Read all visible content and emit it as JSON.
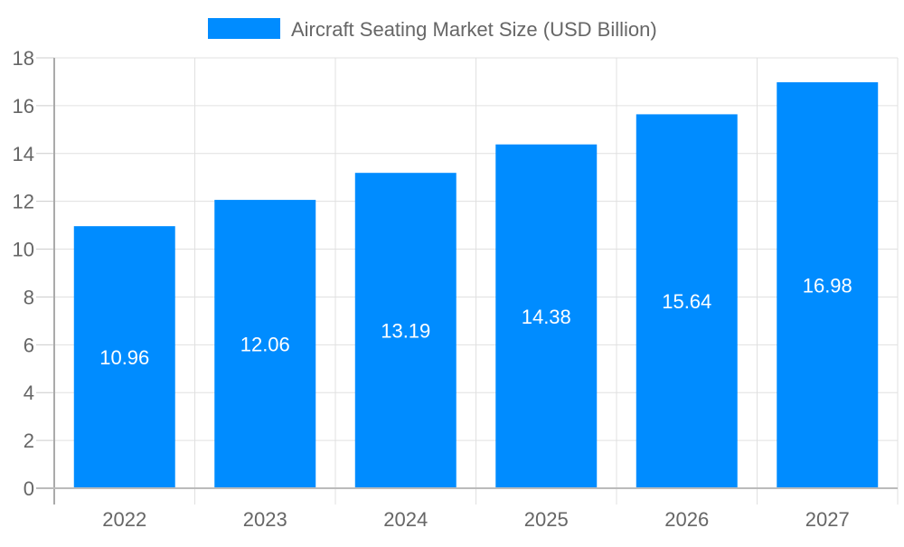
{
  "chart_data": {
    "type": "bar",
    "title": "",
    "xlabel": "",
    "ylabel": "",
    "categories": [
      "2022",
      "2023",
      "2024",
      "2025",
      "2026",
      "2027"
    ],
    "series": [
      {
        "name": "Aircraft Seating Market Size (USD Billion)",
        "values": [
          10.96,
          12.06,
          13.19,
          14.38,
          15.64,
          16.98
        ],
        "color": "#008cff"
      }
    ],
    "data_labels": [
      "10.96",
      "12.06",
      "13.19",
      "14.38",
      "15.64",
      "16.98"
    ],
    "ylim": [
      0,
      18
    ],
    "yticks": [
      "0",
      "2",
      "4",
      "6",
      "8",
      "10",
      "12",
      "14",
      "16",
      "18"
    ],
    "grid": true,
    "legend": "top-center"
  }
}
